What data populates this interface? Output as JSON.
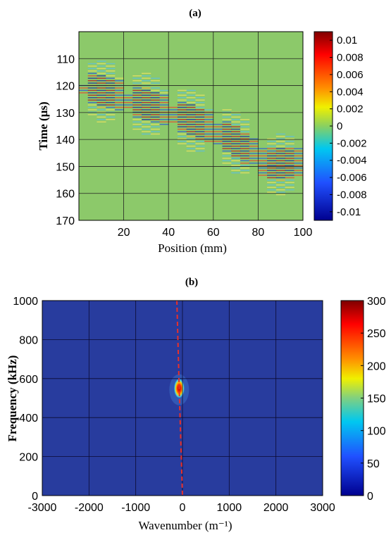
{
  "chart_data": [
    {
      "type": "heatmap",
      "panel_label": "(a)",
      "xlabel": "Position (mm)",
      "ylabel": "Time (μs)",
      "xlim": [
        0,
        100
      ],
      "ylim": [
        100,
        170
      ],
      "y_direction": "reversed",
      "xticks": [
        20,
        40,
        60,
        80,
        100
      ],
      "yticks": [
        110,
        120,
        130,
        140,
        150,
        160,
        170
      ],
      "grid": true,
      "colorbar": {
        "range": [
          -0.011,
          0.011
        ],
        "ticks": [
          0.01,
          0.008,
          0.006,
          0.004,
          0.002,
          0,
          -0.002,
          -0.004,
          -0.006,
          -0.008,
          -0.01
        ],
        "tick_labels": [
          "0.01",
          "0.008",
          "0.006",
          "0.004",
          "0.002",
          "0",
          "-0.002",
          "-0.004",
          "-0.006",
          "-0.008",
          "-0.01"
        ],
        "colormap": "jet"
      },
      "pattern": {
        "description": "oscillating wave packets drifting to later time with position",
        "band_center": [
          [
            15,
            123
          ],
          [
            40,
            129
          ],
          [
            65,
            138
          ],
          [
            85,
            149
          ]
        ],
        "amplitude_peak": 0.011
      }
    },
    {
      "type": "heatmap",
      "panel_label": "(b)",
      "xlabel": "Wavenumber (m⁻¹)",
      "ylabel": "Frequency (kHz)",
      "xlim": [
        -3000,
        3000
      ],
      "ylim": [
        0,
        1000
      ],
      "xticks": [
        -3000,
        -2000,
        -1000,
        0,
        1000,
        2000,
        3000
      ],
      "yticks": [
        0,
        200,
        400,
        600,
        800,
        1000
      ],
      "grid": true,
      "colorbar": {
        "range": [
          0,
          300
        ],
        "ticks": [
          300,
          250,
          200,
          150,
          100,
          50,
          0
        ],
        "tick_labels": [
          "300",
          "250",
          "200",
          "150",
          "100",
          "50",
          "0"
        ],
        "colormap": "jet"
      },
      "peak": {
        "x": -70,
        "y": 550,
        "value": 300
      },
      "dashed_line": {
        "color": "#e8302a",
        "points": [
          [
            -120,
            1000
          ],
          [
            -70,
            550
          ],
          [
            0,
            0
          ]
        ]
      }
    }
  ]
}
